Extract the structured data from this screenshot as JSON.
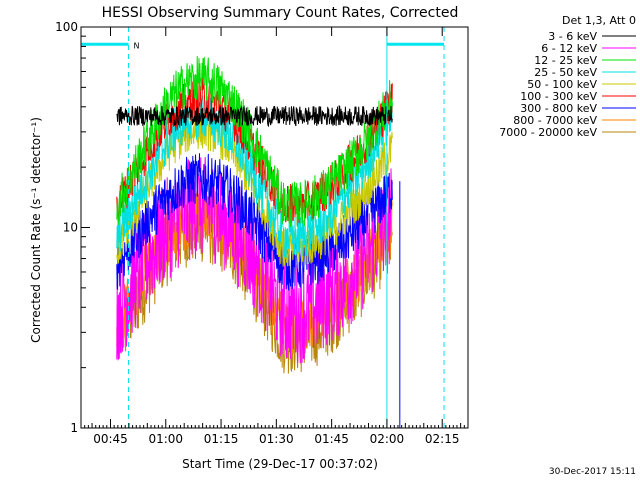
{
  "chart_data": {
    "type": "line",
    "title": "HESSI Observing Summary Count Rates, Corrected",
    "xlabel": "Start Time (29-Dec-17 00:37:02)",
    "ylabel": "Corrected Count Rate (s⁻¹ detector⁻¹)",
    "yscale": "log",
    "ylim": [
      1,
      100
    ],
    "xlim_minutes_after_0037": [
      0,
      105
    ],
    "x_ticks": [
      {
        "label": "00:45",
        "min": 8
      },
      {
        "label": "01:00",
        "min": 23
      },
      {
        "label": "01:15",
        "min": 38
      },
      {
        "label": "01:30",
        "min": 53
      },
      {
        "label": "01:45",
        "min": 68
      },
      {
        "label": "02:00",
        "min": 83
      },
      {
        "label": "02:15",
        "min": 98
      }
    ],
    "y_ticks": [
      {
        "label": "1",
        "value": 1
      },
      {
        "label": "10",
        "value": 10
      },
      {
        "label": "100",
        "value": 100
      }
    ],
    "legend_title": "Det 1,3, Att 0",
    "legend_placement": "right",
    "series": [
      {
        "name": "3 - 6 keV",
        "color": "#000000",
        "profile": "flat",
        "base": 36,
        "peak": 36,
        "noise": 0.05
      },
      {
        "name": "6 - 12 keV",
        "color": "#ff00ff",
        "profile": "hump",
        "base": 3.8,
        "peak": 12.5,
        "end": 11.5,
        "noise": 0.2
      },
      {
        "name": "12 - 25 keV",
        "color": "#00e000",
        "profile": "hump",
        "base": 13,
        "peak": 55,
        "end": 44,
        "noise": 0.09
      },
      {
        "name": "25 - 50 keV",
        "color": "#00e0e0",
        "profile": "hump",
        "base": 9,
        "peak": 36,
        "end": 38,
        "noise": 0.09
      },
      {
        "name": "50 - 100 keV",
        "color": "#c8c800",
        "profile": "hump",
        "base": 7.8,
        "peak": 31,
        "end": 25,
        "noise": 0.08
      },
      {
        "name": "100 - 300 keV",
        "color": "#ff0000",
        "profile": "hump",
        "base": 13,
        "peak": 44,
        "end": 44,
        "noise": 0.08
      },
      {
        "name": "300 - 800 keV",
        "color": "#0000ff",
        "profile": "hump",
        "base": 6.5,
        "peak": 17.5,
        "end": 16,
        "noise": 0.1
      },
      {
        "name": "800 - 7000 keV",
        "color": "#ff8000",
        "profile": "hump",
        "base": 3.3,
        "peak": 11.5,
        "end": 10.5,
        "noise": 0.12
      },
      {
        "name": "7000 - 20000 keV",
        "color": "#b8860b",
        "profile": "hump",
        "base": 2.8,
        "peak": 10,
        "end": 9.5,
        "noise": 0.14
      }
    ],
    "data_window_minutes": [
      9.7,
      58.8,
      84.5
    ],
    "annotations": {
      "saa_label": "N",
      "bar_color": "#00e5ee",
      "night_bar_left_minutes": [
        0,
        12.9
      ],
      "night_bar_right_minutes": [
        83,
        98.5
      ],
      "solid_vlines_minutes": [
        0,
        83
      ],
      "dashed_vlines_minutes": [
        12.9,
        98.5
      ],
      "blue_vline_minutes": 86.5
    },
    "footer_date": "30-Dec-2017 15:11"
  }
}
